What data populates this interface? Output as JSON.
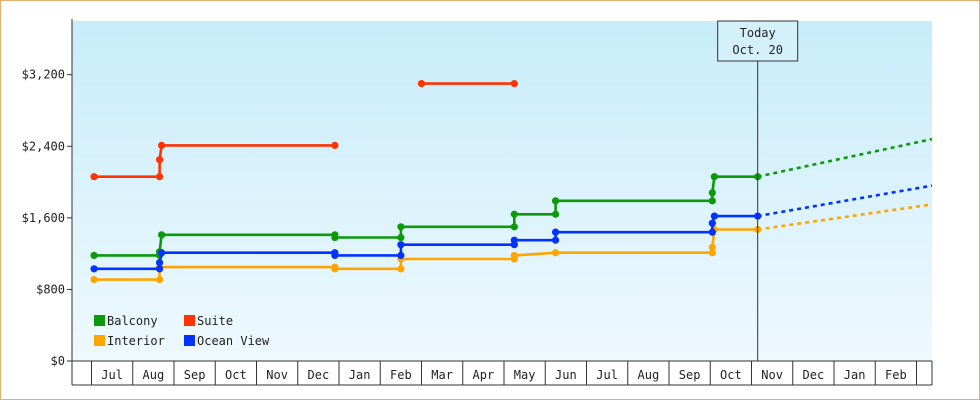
{
  "chart_data": {
    "type": "line",
    "title": "",
    "xlabel": "",
    "ylabel": "",
    "ylim": [
      0,
      3800
    ],
    "y_ticks": [
      0,
      800,
      1600,
      2400,
      3200
    ],
    "y_tick_labels": [
      "$0",
      "$800",
      "$1,600",
      "$2,400",
      "$3,200"
    ],
    "months": [
      "Jul",
      "Aug",
      "Sep",
      "Oct",
      "Nov",
      "Dec",
      "Jan",
      "Feb",
      "Mar",
      "Apr",
      "May",
      "Jun",
      "Jul",
      "Aug",
      "Sep",
      "Oct",
      "Nov",
      "Dec",
      "Jan",
      "Feb"
    ],
    "x_unit": "month index (0 = Jul)",
    "xlim": [
      -0.45,
      20.2
    ],
    "today": {
      "line1": "Today",
      "line2": "Oct. 20",
      "x": 15.65
    },
    "legend": {
      "position": "bottom-left"
    },
    "series": [
      {
        "name": "Balcony",
        "color": "#0a9a0a",
        "points": [
          [
            -0.45,
            1180
          ],
          [
            1.15,
            1180
          ],
          [
            1.15,
            1220
          ],
          [
            1.2,
            1410
          ],
          [
            5.4,
            1410
          ],
          [
            5.4,
            1380
          ],
          [
            7.0,
            1380
          ],
          [
            7.0,
            1500
          ],
          [
            9.75,
            1500
          ],
          [
            9.75,
            1640
          ],
          [
            10.75,
            1640
          ],
          [
            10.75,
            1790
          ],
          [
            14.55,
            1790
          ],
          [
            14.55,
            1880
          ],
          [
            14.6,
            2060
          ],
          [
            15.65,
            2060
          ]
        ],
        "projection": [
          [
            15.65,
            2060
          ],
          [
            20.2,
            2480
          ]
        ]
      },
      {
        "name": "Suite",
        "color": "#ff3300",
        "segments": [
          [
            [
              -0.45,
              2060
            ],
            [
              1.15,
              2060
            ],
            [
              1.15,
              2250
            ],
            [
              1.2,
              2410
            ],
            [
              5.4,
              2410
            ]
          ],
          [
            [
              7.5,
              3100
            ],
            [
              9.75,
              3100
            ]
          ]
        ]
      },
      {
        "name": "Interior",
        "color": "#ffa500",
        "points": [
          [
            -0.45,
            910
          ],
          [
            1.15,
            910
          ],
          [
            1.15,
            1050
          ],
          [
            5.4,
            1050
          ],
          [
            5.4,
            1030
          ],
          [
            7.0,
            1030
          ],
          [
            7.0,
            1140
          ],
          [
            9.75,
            1140
          ],
          [
            9.75,
            1180
          ],
          [
            10.75,
            1210
          ],
          [
            14.55,
            1210
          ],
          [
            14.55,
            1270
          ],
          [
            14.6,
            1470
          ],
          [
            15.65,
            1470
          ]
        ],
        "projection": [
          [
            15.65,
            1470
          ],
          [
            20.2,
            1750
          ]
        ]
      },
      {
        "name": "Ocean View",
        "color": "#0033ff",
        "points": [
          [
            -0.45,
            1030
          ],
          [
            1.15,
            1030
          ],
          [
            1.15,
            1100
          ],
          [
            1.2,
            1210
          ],
          [
            5.4,
            1210
          ],
          [
            5.4,
            1180
          ],
          [
            7.0,
            1180
          ],
          [
            7.0,
            1300
          ],
          [
            9.75,
            1300
          ],
          [
            9.75,
            1350
          ],
          [
            10.75,
            1350
          ],
          [
            10.75,
            1440
          ],
          [
            14.55,
            1440
          ],
          [
            14.55,
            1540
          ],
          [
            14.6,
            1620
          ],
          [
            15.65,
            1620
          ]
        ],
        "projection": [
          [
            15.65,
            1620
          ],
          [
            20.2,
            1960
          ]
        ]
      }
    ]
  }
}
